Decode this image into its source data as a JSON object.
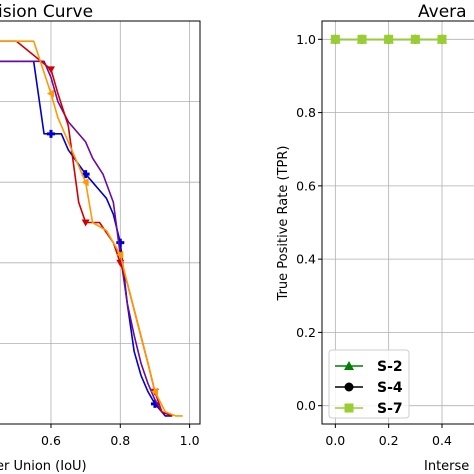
{
  "chart_data": [
    {
      "type": "line",
      "title": "ision Curve",
      "xlabel": "er Union (IoU)",
      "xlim": [
        0.45,
        1.03
      ],
      "ylim": [
        0.0,
        1.0
      ],
      "x_ticks": [
        0.6,
        0.8,
        1.0
      ],
      "x_tick_labels": [
        "0.6",
        "0.8",
        "1.0"
      ],
      "grid": true,
      "series": [
        {
          "color": "#0000cc",
          "marker": "plus",
          "x": [
            0.45,
            0.55,
            0.58,
            0.6,
            0.63,
            0.65,
            0.7,
            0.72,
            0.74,
            0.76,
            0.78,
            0.8,
            0.82,
            0.84,
            0.86,
            0.88,
            0.9,
            0.93,
            0.95
          ],
          "y": [
            0.9,
            0.9,
            0.72,
            0.72,
            0.72,
            0.68,
            0.62,
            0.6,
            0.58,
            0.56,
            0.52,
            0.45,
            0.3,
            0.18,
            0.12,
            0.08,
            0.05,
            0.02,
            0.02
          ],
          "marker_x": [
            0.6,
            0.7,
            0.8,
            0.9
          ]
        },
        {
          "color": "#6a0aa0",
          "marker": "none",
          "x": [
            0.45,
            0.58,
            0.6,
            0.62,
            0.65,
            0.7,
            0.72,
            0.75,
            0.78,
            0.8,
            0.82,
            0.84,
            0.86,
            0.88,
            0.9,
            0.92,
            0.95
          ],
          "y": [
            0.9,
            0.9,
            0.86,
            0.8,
            0.75,
            0.7,
            0.66,
            0.62,
            0.55,
            0.42,
            0.3,
            0.22,
            0.15,
            0.1,
            0.06,
            0.03,
            0.02
          ],
          "marker_x": []
        },
        {
          "color": "#d00000",
          "marker": "triangle-down",
          "x": [
            0.45,
            0.5,
            0.6,
            0.62,
            0.65,
            0.68,
            0.7,
            0.74,
            0.78,
            0.8,
            0.82,
            0.85,
            0.88,
            0.9,
            0.92,
            0.95
          ],
          "y": [
            0.95,
            0.95,
            0.88,
            0.82,
            0.74,
            0.55,
            0.5,
            0.5,
            0.45,
            0.4,
            0.35,
            0.25,
            0.15,
            0.08,
            0.03,
            0.02
          ],
          "marker_x": [
            0.6,
            0.7,
            0.8,
            0.9
          ]
        },
        {
          "color": "#ff9900",
          "marker": "triangle-left",
          "x": [
            0.45,
            0.55,
            0.6,
            0.62,
            0.65,
            0.7,
            0.72,
            0.76,
            0.8,
            0.82,
            0.85,
            0.88,
            0.9,
            0.93,
            0.96,
            0.98
          ],
          "y": [
            0.95,
            0.95,
            0.82,
            0.76,
            0.7,
            0.6,
            0.5,
            0.48,
            0.42,
            0.35,
            0.25,
            0.15,
            0.08,
            0.03,
            0.02,
            0.02
          ],
          "marker_x": [
            0.6,
            0.7,
            0.8,
            0.9
          ]
        }
      ]
    },
    {
      "type": "line",
      "title": "Avera",
      "xlabel": "Interse",
      "ylabel": "True Positive Rate (TPR)",
      "xlim": [
        -0.05,
        0.55
      ],
      "ylim": [
        -0.05,
        1.05
      ],
      "x_ticks": [
        0.0,
        0.2,
        0.4
      ],
      "x_tick_labels": [
        "0.0",
        "0.2",
        "0.4"
      ],
      "y_ticks": [
        0.0,
        0.2,
        0.4,
        0.6,
        0.8,
        1.0
      ],
      "y_tick_labels": [
        "0.0",
        "0.2",
        "0.4",
        "0.6",
        "0.8",
        "1.0"
      ],
      "grid": true,
      "legend_position": "bottom-left",
      "series": [
        {
          "name": "S-2",
          "color": "#007f00",
          "marker": "triangle-up",
          "x": [
            0.0,
            0.1,
            0.2,
            0.3,
            0.4
          ],
          "y": [
            1.0,
            1.0,
            1.0,
            1.0,
            1.0
          ]
        },
        {
          "name": "S-4",
          "color": "#000000",
          "marker": "circle",
          "x": [
            0.0,
            0.1,
            0.2,
            0.3,
            0.4
          ],
          "y": [
            1.0,
            1.0,
            1.0,
            1.0,
            1.0
          ]
        },
        {
          "name": "S-7",
          "color": "#9acd32",
          "marker": "square",
          "x": [
            0.0,
            0.1,
            0.2,
            0.3,
            0.4
          ],
          "y": [
            1.0,
            1.0,
            1.0,
            1.0,
            1.0
          ]
        }
      ]
    }
  ]
}
